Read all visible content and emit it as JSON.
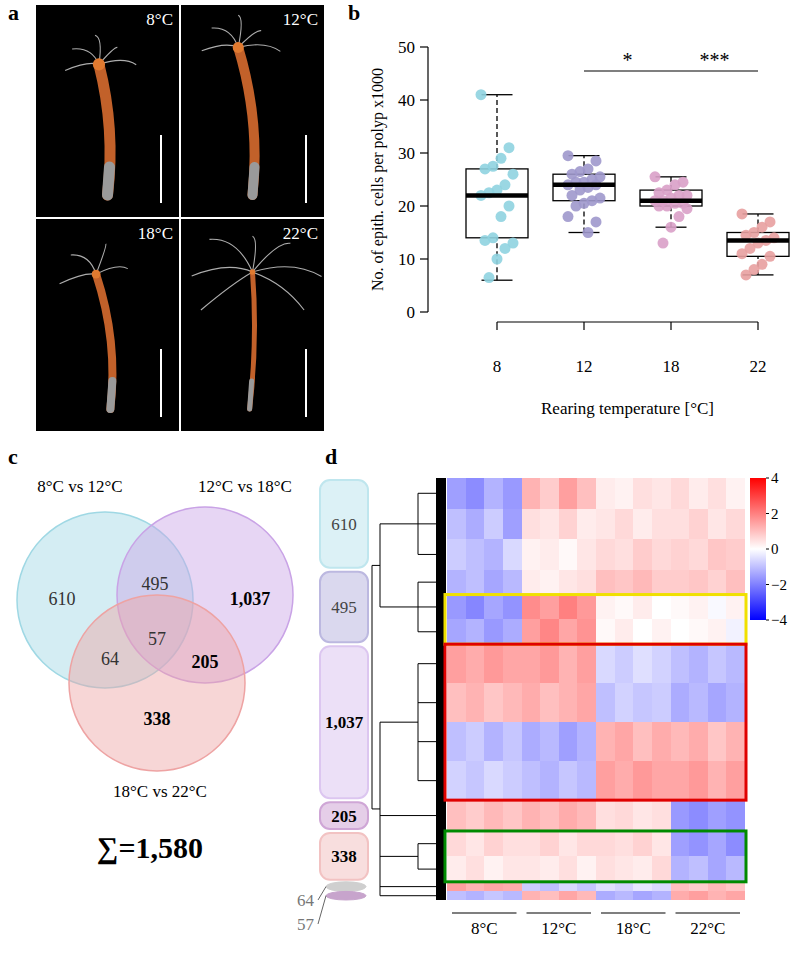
{
  "chart_data": [
    {
      "panel": "a",
      "type": "image",
      "labels": [
        "8°C",
        "12°C",
        "18°C",
        "22°C"
      ]
    },
    {
      "panel": "b",
      "type": "box",
      "x_label": "Rearing temperature [°C]",
      "y_label": "No. of epith. cells per polyp x1000",
      "categories": [
        "8",
        "12",
        "18",
        "22"
      ],
      "colors": [
        "#8fd3e0",
        "#9e98cc",
        "#d9a0c8",
        "#e8a0a0"
      ],
      "ylim": [
        0,
        50
      ],
      "yticks": [
        0,
        10,
        20,
        30,
        40,
        50
      ],
      "boxes": [
        {
          "min": 6,
          "q1": 14,
          "median": 22,
          "q3": 27,
          "max": 41
        },
        {
          "min": 15,
          "q1": 21,
          "median": 24,
          "q3": 26,
          "max": 29.5
        },
        {
          "min": 16,
          "q1": 20,
          "median": 21,
          "q3": 23,
          "max": 25.5
        },
        {
          "min": 7,
          "q1": 10.5,
          "median": 13.5,
          "q3": 15,
          "max": 18.5
        }
      ],
      "points": [
        [
          41,
          31,
          29,
          27.5,
          27,
          26,
          24,
          23,
          22.5,
          22,
          20,
          18,
          14,
          13.5,
          13,
          12,
          10,
          6.5
        ],
        [
          29.5,
          28.5,
          27,
          26.5,
          26,
          25.5,
          25,
          24.5,
          24.5,
          24,
          24,
          23.5,
          23,
          22,
          21.5,
          21,
          20.5,
          20,
          18,
          17,
          15
        ],
        [
          25.5,
          24.5,
          24,
          23,
          22.5,
          22,
          22,
          21.5,
          21,
          21,
          20.5,
          20.5,
          20,
          20,
          19.5,
          18,
          16,
          13
        ],
        [
          18.5,
          17,
          16,
          15,
          14.5,
          14,
          13.5,
          13,
          12,
          11,
          10.5,
          9,
          8,
          7
        ]
      ],
      "annotations": [
        {
          "between": [
            "12",
            "18"
          ],
          "label": "*"
        },
        {
          "between": [
            "18",
            "22"
          ],
          "label": "***"
        }
      ]
    },
    {
      "panel": "c",
      "type": "venn",
      "sets": [
        {
          "name": "8°C vs 12°C",
          "color": "#9fd8e4"
        },
        {
          "name": "12°C vs 18°C",
          "color": "#c9a3e6"
        },
        {
          "name": "18°C vs 22°C",
          "color": "#eea3a3"
        }
      ],
      "regions": [
        {
          "sets": [
            "8°C vs 12°C"
          ],
          "value": 610
        },
        {
          "sets": [
            "12°C vs 18°C"
          ],
          "value": 1037,
          "label": "1,037"
        },
        {
          "sets": [
            "18°C vs 22°C"
          ],
          "value": 338
        },
        {
          "sets": [
            "8°C vs 12°C",
            "12°C vs 18°C"
          ],
          "value": 495
        },
        {
          "sets": [
            "8°C vs 12°C",
            "18°C vs 22°C"
          ],
          "value": 64
        },
        {
          "sets": [
            "12°C vs 18°C",
            "18°C vs 22°C"
          ],
          "value": 205
        },
        {
          "sets": [
            "8°C vs 12°C",
            "12°C vs 18°C",
            "18°C vs 22°C"
          ],
          "value": 57
        }
      ],
      "total": {
        "value": 1580,
        "label": "∑=1,580"
      }
    },
    {
      "panel": "d",
      "type": "heatmap",
      "column_groups": [
        "8°C",
        "12°C",
        "18°C",
        "22°C"
      ],
      "colorbar": {
        "range": [
          -4,
          4
        ],
        "ticks": [
          4,
          2,
          0,
          {
            "value": -2,
            "label": "−2"
          },
          {
            "value": -4,
            "label": "−4"
          }
        ]
      },
      "clusters": [
        {
          "value": 610,
          "color": "#bfe6ee",
          "sets": [
            "8°C vs 12°C"
          ],
          "rows": [
            [
              -1.5,
              -1.8,
              -1.2,
              -1.6,
              1.2,
              0.8,
              1.5,
              1.0,
              0.3,
              0.2,
              0.5,
              0.4,
              0.6,
              0.3,
              0.5,
              0.2
            ],
            [
              -1.0,
              -1.3,
              -0.8,
              -1.5,
              0.5,
              0.4,
              0.7,
              0.3,
              0.4,
              0.6,
              0.3,
              0.5,
              0.5,
              0.7,
              0.4,
              0.6
            ],
            [
              -0.8,
              -1.0,
              -1.2,
              -0.6,
              0.2,
              0.3,
              0.1,
              0.4,
              0.6,
              0.5,
              0.8,
              0.6,
              0.7,
              0.6,
              0.9,
              0.8
            ]
          ]
        },
        {
          "value": 495,
          "color": "#bcb8e0",
          "sets": [
            "8°C vs 12°C",
            "12°C vs 18°C"
          ],
          "rows": [
            [
              -1.2,
              -1.0,
              -1.4,
              -1.1,
              0.3,
              0.2,
              0.4,
              0.5,
              1.0,
              0.9,
              1.1,
              0.8,
              0.8,
              0.9,
              0.7,
              1.0
            ],
            [
              -1.6,
              -1.9,
              -1.4,
              -1.7,
              1.8,
              1.5,
              2.0,
              1.6,
              0.2,
              0.1,
              0.3,
              0.0,
              0.1,
              0.2,
              -0.1,
              0.2
            ],
            [
              -1.4,
              -1.2,
              -1.6,
              -1.3,
              1.5,
              1.9,
              1.4,
              1.7,
              0.1,
              0.3,
              0.0,
              0.2,
              0.0,
              0.1,
              0.2,
              -0.2
            ]
          ]
        },
        {
          "value": 1037,
          "label": "1,037",
          "color": "#dcc6f0",
          "sets": [
            "12°C vs 18°C"
          ],
          "rows": [
            [
              1.5,
              1.3,
              1.6,
              1.4,
              1.4,
              1.6,
              1.2,
              1.5,
              -0.6,
              -0.8,
              -0.5,
              -0.7,
              -1.0,
              -1.2,
              -0.9,
              -1.1
            ],
            [
              1.0,
              1.2,
              0.9,
              1.1,
              1.3,
              1.0,
              1.2,
              1.4,
              -1.0,
              -0.7,
              -0.9,
              -0.8,
              -1.3,
              -1.1,
              -1.4,
              -1.2
            ],
            [
              -1.0,
              -0.8,
              -1.2,
              -0.9,
              -1.3,
              -1.1,
              -1.5,
              -1.2,
              1.2,
              1.4,
              1.0,
              1.3,
              1.1,
              1.3,
              0.9,
              1.2
            ],
            [
              -0.7,
              -0.9,
              -0.6,
              -0.8,
              -1.0,
              -1.2,
              -0.9,
              -1.1,
              1.5,
              1.3,
              1.6,
              1.4,
              1.4,
              1.6,
              1.2,
              1.5
            ]
          ]
        },
        {
          "value": 205,
          "color": "#cfa6d6",
          "sets": [
            "12°C vs 18°C",
            "18°C vs 22°C"
          ],
          "rows": [
            [
              1.0,
              0.8,
              1.1,
              0.9,
              1.2,
              1.0,
              1.3,
              1.1,
              0.5,
              0.6,
              0.4,
              0.5,
              -1.6,
              -1.8,
              -1.5,
              -1.7
            ]
          ]
        },
        {
          "value": 338,
          "color": "#f2c2c2",
          "sets": [
            "18°C vs 22°C"
          ],
          "rows": [
            [
              0.6,
              0.4,
              0.7,
              0.5,
              0.5,
              0.7,
              0.4,
              0.6,
              0.6,
              0.5,
              0.7,
              0.4,
              -1.5,
              -1.7,
              -1.4,
              -1.8
            ],
            [
              0.3,
              0.5,
              0.2,
              0.4,
              0.4,
              0.3,
              0.5,
              0.2,
              0.5,
              0.4,
              0.3,
              0.6,
              -1.2,
              -1.0,
              -1.4,
              -1.1
            ]
          ]
        },
        {
          "value": 64,
          "color": "#cfcfcf",
          "sets": [
            "8°C vs 12°C",
            "18°C vs 22°C"
          ],
          "rows": [
            [
              1.5,
              1.2,
              1.4,
              1.3,
              -0.8,
              -1.0,
              -0.6,
              -0.9,
              -0.5,
              -0.7,
              -0.4,
              -0.6,
              1.0,
              0.8,
              1.1,
              0.9
            ]
          ]
        },
        {
          "value": 57,
          "color": "#c7a4cc",
          "sets": [
            "8°C vs 12°C",
            "12°C vs 18°C",
            "18°C vs 22°C"
          ],
          "rows": [
            [
              -1.0,
              -1.2,
              -0.9,
              -1.1,
              1.2,
              1.0,
              1.4,
              1.1,
              -1.3,
              -1.1,
              -1.4,
              -1.2,
              1.3,
              1.5,
              1.2,
              1.4
            ]
          ]
        }
      ]
    }
  ]
}
